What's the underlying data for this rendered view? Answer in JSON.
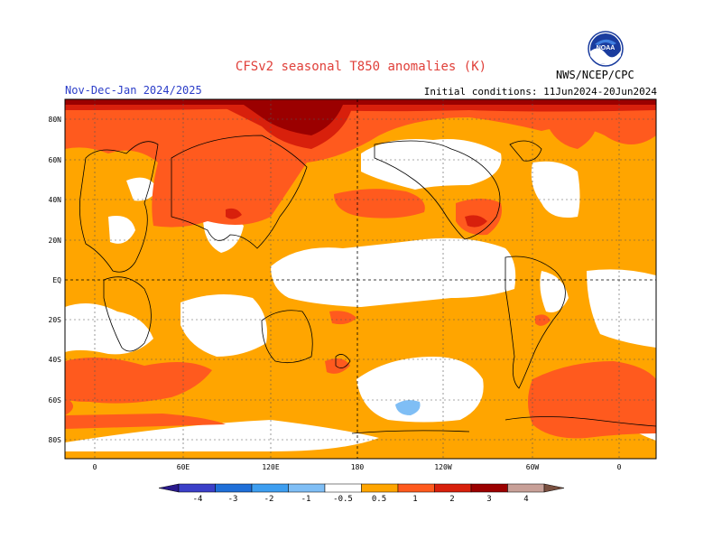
{
  "title": "CFSv2 seasonal T850 anomalies (K)",
  "period": "Nov-Dec-Jan 2024/2025",
  "initial_conditions": "Initial conditions: 11Jun2024-20Jun2024",
  "organization": "NWS/NCEP/CPC",
  "logo_text": "NOAA",
  "latitude_labels": [
    "80N",
    "60N",
    "40N",
    "20N",
    "EQ",
    "20S",
    "40S",
    "60S",
    "80S"
  ],
  "longitude_labels": [
    "0",
    "60E",
    "120E",
    "180",
    "120W",
    "60W",
    "0"
  ],
  "colorbar": {
    "labels": [
      "-4",
      "-3",
      "-2",
      "-1",
      "-0.5",
      "0.5",
      "1",
      "2",
      "3",
      "4"
    ],
    "colors": [
      "#2a1a8c",
      "#3b3fc8",
      "#1f6fd8",
      "#3d9ef0",
      "#7fbef5",
      "#ffffff",
      "#ffa500",
      "#ff5a1e",
      "#d8200c",
      "#9b0000",
      "#c8a098",
      "#7a5040"
    ]
  }
}
